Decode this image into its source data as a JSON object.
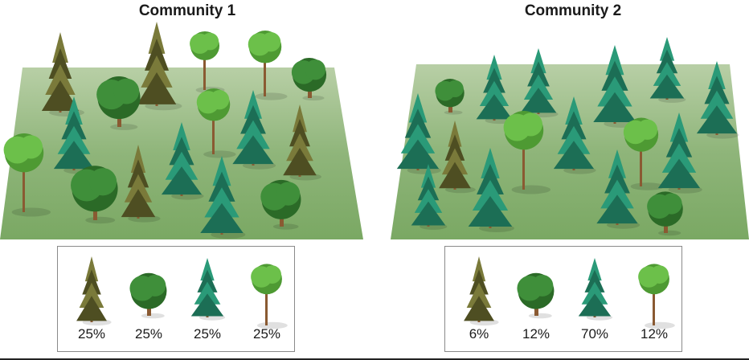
{
  "communities": [
    {
      "title": "Community 1",
      "legend": [
        {
          "species": "spruce-icon",
          "percent": "25%"
        },
        {
          "species": "oak-icon",
          "percent": "25%"
        },
        {
          "species": "pine-icon",
          "percent": "25%"
        },
        {
          "species": "birch-icon",
          "percent": "25%"
        }
      ]
    },
    {
      "title": "Community 2",
      "legend": [
        {
          "species": "spruce-icon",
          "percent": "6%"
        },
        {
          "species": "oak-icon",
          "percent": "12%"
        },
        {
          "species": "pine-icon",
          "percent": "70%"
        },
        {
          "species": "birch-icon",
          "percent": "12%"
        }
      ]
    }
  ],
  "colors": {
    "ground": "#8fb57a",
    "spruce": "#7a7a3a",
    "oak": "#3f8f3a",
    "pine": "#2a9a78",
    "birch": "#6cc04a",
    "trunk": "#8a5a32"
  }
}
